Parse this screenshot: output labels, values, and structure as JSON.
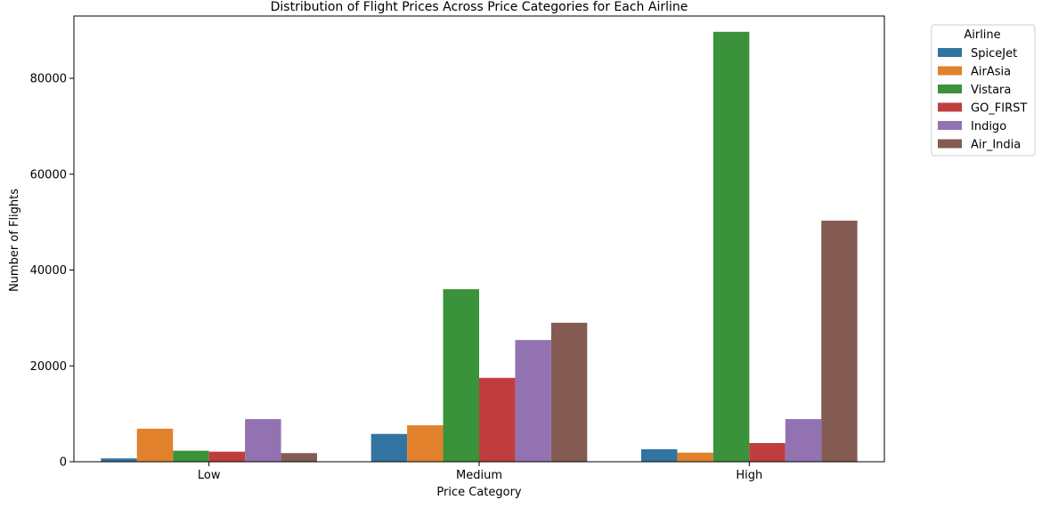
{
  "chart_data": {
    "type": "bar",
    "title": "Distribution of Flight Prices Across Price Categories for Each Airline",
    "xlabel": "Price Category",
    "ylabel": "Number of Flights",
    "categories": [
      "Low",
      "Medium",
      "High"
    ],
    "ylim": [
      0,
      93000
    ],
    "yticks": [
      0,
      20000,
      40000,
      60000,
      80000
    ],
    "legend": {
      "title": "Airline",
      "placement": "outside-top-right"
    },
    "series": [
      {
        "name": "SpiceJet",
        "color": "#3274a1",
        "values": [
          700,
          5800,
          2600
        ]
      },
      {
        "name": "AirAsia",
        "color": "#e1812c",
        "values": [
          6900,
          7600,
          1900
        ]
      },
      {
        "name": "Vistara",
        "color": "#3a923a",
        "values": [
          2300,
          36000,
          89700
        ]
      },
      {
        "name": "GO_FIRST",
        "color": "#c03d3e",
        "values": [
          2100,
          17500,
          3900
        ]
      },
      {
        "name": "Indigo",
        "color": "#9372b2",
        "values": [
          8900,
          25400,
          8900
        ]
      },
      {
        "name": "Air_India",
        "color": "#845b53",
        "values": [
          1800,
          29000,
          50300
        ]
      }
    ]
  }
}
